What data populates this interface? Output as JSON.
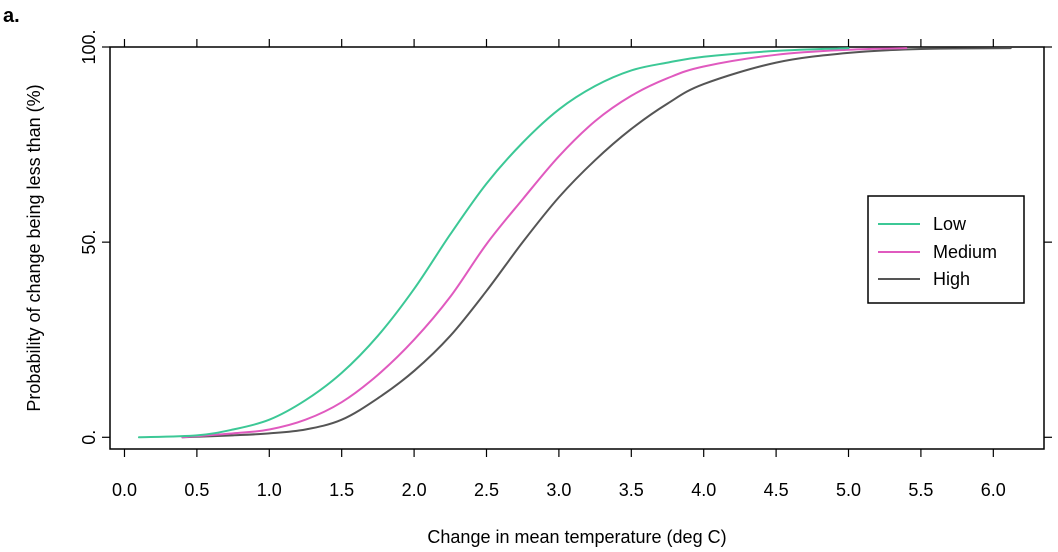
{
  "panel_label": "a.",
  "chart_data": {
    "type": "line",
    "xlabel": "Change in mean temperature (deg C)",
    "ylabel": "Probability of change being less than (%)",
    "xlim": [
      -0.1,
      6.35
    ],
    "ylim": [
      -3,
      100
    ],
    "x_ticks": [
      0.0,
      0.5,
      1.0,
      1.5,
      2.0,
      2.5,
      3.0,
      3.5,
      4.0,
      4.5,
      5.0,
      5.5,
      6.0
    ],
    "x_tick_labels": [
      "0.0",
      "0.5",
      "1.0",
      "1.5",
      "2.0",
      "2.5",
      "3.0",
      "3.5",
      "4.0",
      "4.5",
      "5.0",
      "5.5",
      "6.0"
    ],
    "y_ticks": [
      0,
      50,
      100
    ],
    "y_tick_labels": [
      "0.",
      "50.",
      "100."
    ],
    "grid": false,
    "legend_position": "right",
    "series": [
      {
        "name": "Low",
        "color": "#3cc896",
        "x": [
          0.1,
          0.5,
          0.75,
          1.0,
          1.25,
          1.5,
          1.75,
          2.0,
          2.25,
          2.5,
          2.75,
          3.0,
          3.25,
          3.5,
          3.75,
          4.0,
          4.5,
          5.0
        ],
        "y": [
          0.0,
          0.5,
          2.0,
          4.5,
          9.5,
          16.5,
          26.0,
          38.0,
          52.0,
          65.0,
          75.5,
          84.0,
          90.0,
          94.0,
          96.0,
          97.5,
          99.0,
          99.7
        ]
      },
      {
        "name": "Medium",
        "color": "#e05abf",
        "x": [
          0.4,
          0.75,
          1.0,
          1.25,
          1.5,
          1.75,
          2.0,
          2.25,
          2.5,
          2.75,
          3.0,
          3.25,
          3.5,
          3.75,
          4.0,
          4.5,
          5.0,
          5.4
        ],
        "y": [
          0.0,
          1.0,
          2.0,
          4.5,
          9.0,
          16.0,
          25.0,
          36.0,
          49.5,
          61.0,
          72.0,
          81.0,
          87.5,
          92.0,
          95.0,
          98.0,
          99.3,
          99.7
        ]
      },
      {
        "name": "High",
        "color": "#555555",
        "x": [
          0.4,
          0.75,
          1.0,
          1.25,
          1.5,
          1.75,
          2.0,
          2.25,
          2.5,
          2.75,
          3.0,
          3.25,
          3.5,
          3.75,
          4.0,
          4.5,
          5.0,
          5.5,
          6.12
        ],
        "y": [
          0.0,
          0.5,
          1.0,
          2.0,
          4.5,
          10.0,
          17.0,
          26.0,
          37.5,
          50.0,
          61.5,
          71.0,
          79.0,
          85.5,
          90.5,
          96.0,
          98.5,
          99.5,
          99.7
        ]
      }
    ]
  }
}
